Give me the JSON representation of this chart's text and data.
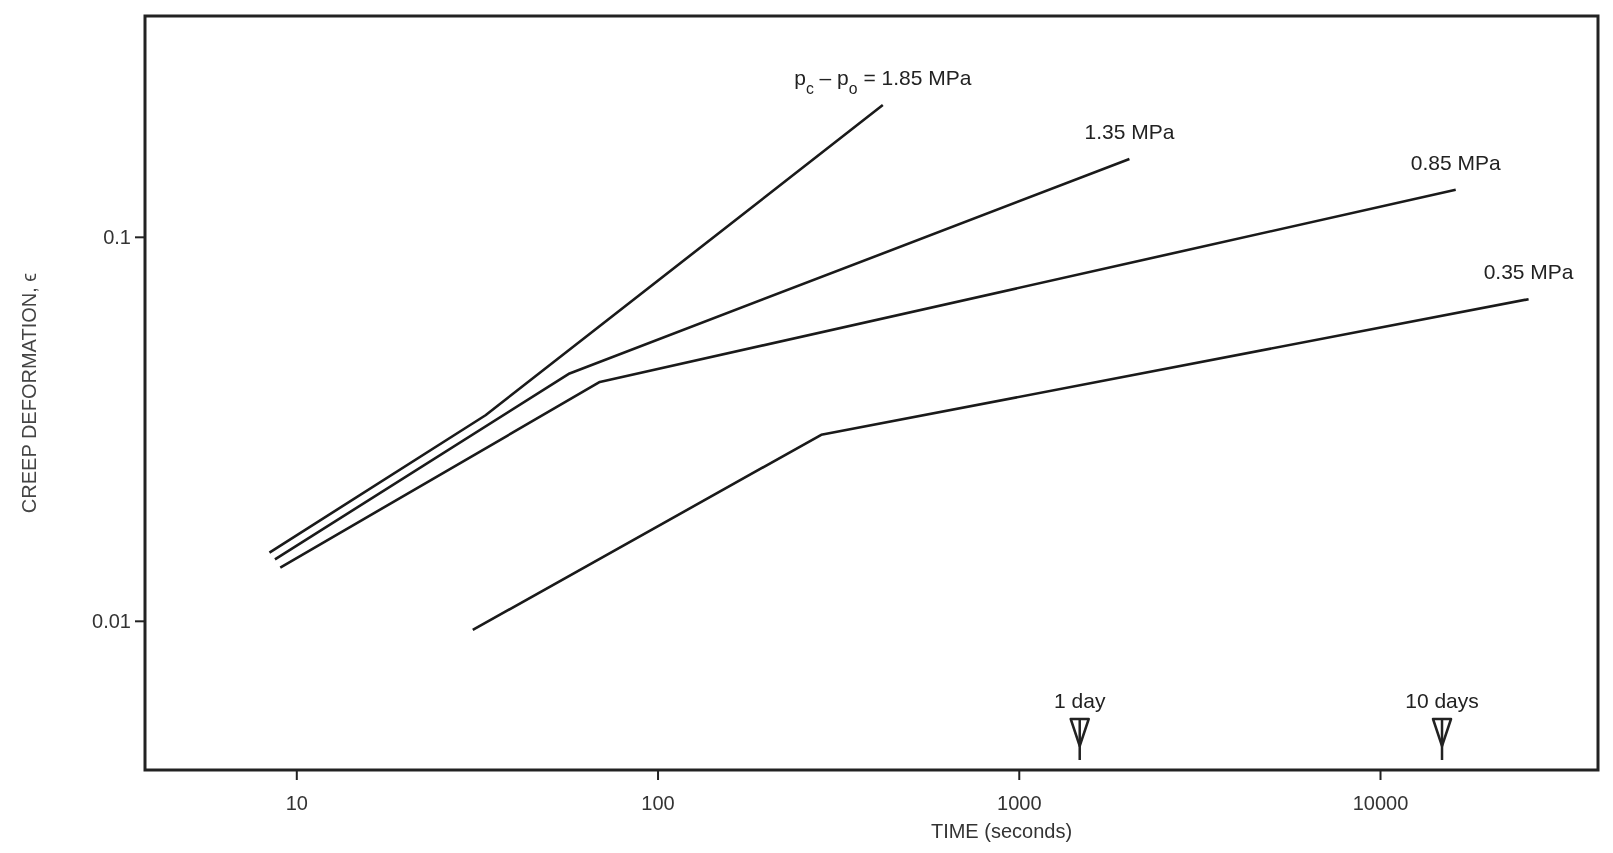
{
  "chart_data": {
    "type": "line",
    "xlabel": "TIME (seconds)",
    "ylabel": "CREEP DEFORMATION, ϵ",
    "log": "xy",
    "xlim": [
      3.8,
      40000
    ],
    "ylim": [
      0.0041,
      0.377
    ],
    "xticks": [
      10,
      100,
      1000,
      10000
    ],
    "yticks": [
      0.01,
      0.1
    ],
    "grid": false,
    "marker": "none",
    "line_style": "solid",
    "series": [
      {
        "name": "p$_{c}$ – p$_{o}$ = 1.85 MPa",
        "color": "#1a1a1a",
        "x": [
          8.4,
          33.3,
          419
        ],
        "values": [
          0.0151,
          0.0344,
          0.221
        ]
      },
      {
        "name": "1.35 MPa",
        "color": "#1a1a1a",
        "x": [
          8.7,
          56.9,
          2018
        ],
        "values": [
          0.0145,
          0.0442,
          0.16
        ]
      },
      {
        "name": "0.85 MPa",
        "color": "#1a1a1a",
        "x": [
          9.0,
          69,
          16150
        ],
        "values": [
          0.0138,
          0.042,
          0.133
        ]
      },
      {
        "name": "0.35 MPa",
        "color": "#1a1a1a",
        "x": [
          30.7,
          283,
          25700
        ],
        "values": [
          0.0095,
          0.0306,
          0.069
        ]
      }
    ],
    "ref_lines": [
      {
        "axis": "x",
        "value": 1470,
        "label": "1 day"
      },
      {
        "axis": "x",
        "value": 14800,
        "label": "10 days"
      }
    ]
  }
}
